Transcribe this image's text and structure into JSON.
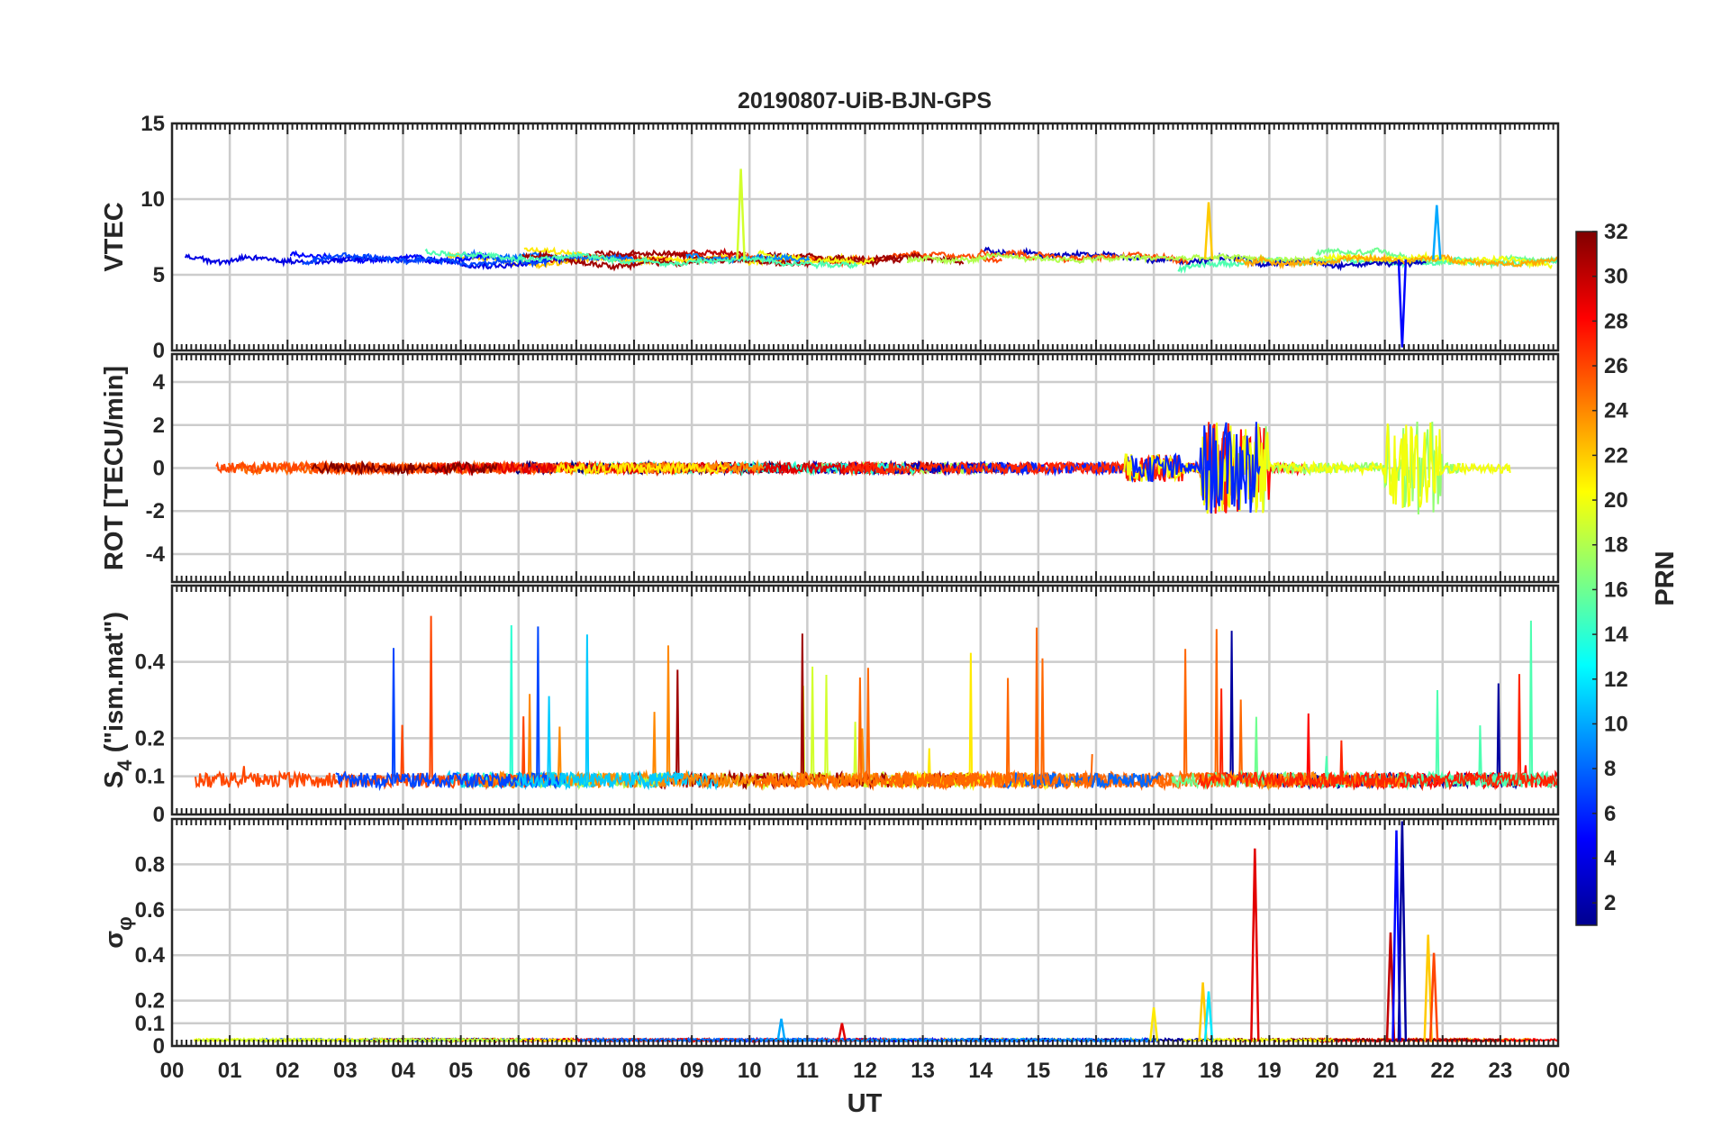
{
  "chart_data": {
    "type": "line",
    "title": "20190807-UiB-BJN-GPS",
    "xlabel": "UT",
    "x_ticks": [
      "00",
      "01",
      "02",
      "03",
      "04",
      "05",
      "06",
      "07",
      "08",
      "09",
      "10",
      "11",
      "12",
      "13",
      "14",
      "15",
      "16",
      "17",
      "18",
      "19",
      "20",
      "21",
      "22",
      "23",
      "00"
    ],
    "xlim_hours": [
      0,
      24
    ],
    "grid": true,
    "series_coloring": "color by PRN (jet colormap)",
    "colorbar": {
      "label": "PRN",
      "range": [
        1,
        32
      ],
      "ticks": [
        "32",
        "30",
        "28",
        "26",
        "24",
        "22",
        "20",
        "18",
        "16",
        "14",
        "12",
        "10",
        "8",
        "6",
        "4",
        "2"
      ],
      "colormap": "jet"
    },
    "panels": [
      {
        "id": "vtec",
        "ylabel": "VTEC",
        "ylim": [
          0,
          15
        ],
        "y_ticks": [
          0,
          5,
          10,
          15
        ],
        "y_tick_labels": [
          "0",
          "5",
          "10",
          "15"
        ],
        "baseline": 6.0,
        "noise": 0.9,
        "spikes": [
          {
            "t": 9.85,
            "value": 12.0,
            "prn": 19
          },
          {
            "t": 17.95,
            "value": 9.8,
            "prn": 22
          },
          {
            "t": 21.3,
            "value": 0.2,
            "prn": 5
          },
          {
            "t": 21.9,
            "value": 9.6,
            "prn": 10
          }
        ]
      },
      {
        "id": "rot",
        "ylabel": "ROT [TECU/min]",
        "ylim": [
          -5.3,
          5.3
        ],
        "y_ticks": [
          -4,
          -2,
          0,
          2,
          4
        ],
        "y_tick_labels": [
          "-4",
          "-2",
          "0",
          "2",
          "4"
        ],
        "baseline": 0,
        "noise": 0.25,
        "active_intervals": [
          {
            "start": 16.5,
            "end": 17.5,
            "amplitude": 1.2
          },
          {
            "start": 17.8,
            "end": 19.0,
            "amplitude": 3.9
          },
          {
            "start": 21.0,
            "end": 22.0,
            "amplitude": 4.0
          }
        ]
      },
      {
        "id": "s4",
        "ylabel_main": "S",
        "ylabel_sub": "4",
        "ylabel_tail": " (\"ism.mat\")",
        "ylim": [
          0,
          0.6
        ],
        "y_ticks": [
          0,
          0.1,
          0.2,
          0.4
        ],
        "y_tick_labels": [
          "0",
          "0.1",
          "0.2",
          "0.4"
        ],
        "baseline": 0.07,
        "noise": 0.05,
        "max_peak": 0.5
      },
      {
        "id": "sigma_phi",
        "ylabel_main": "σ",
        "ylabel_sub": "φ",
        "ylim": [
          0,
          1
        ],
        "y_ticks": [
          0,
          0.1,
          0.2,
          0.4,
          0.6,
          0.8
        ],
        "y_tick_labels": [
          "0",
          "0.1",
          "0.2",
          "0.4",
          "0.6",
          "0.8"
        ],
        "baseline": 0.02,
        "noise": 0.015,
        "spikes": [
          {
            "t": 17.0,
            "value": 0.17,
            "prn": 21
          },
          {
            "t": 17.85,
            "value": 0.28,
            "prn": 22
          },
          {
            "t": 17.95,
            "value": 0.24,
            "prn": 12
          },
          {
            "t": 18.75,
            "value": 0.87,
            "prn": 29
          },
          {
            "t": 21.1,
            "value": 0.5,
            "prn": 30
          },
          {
            "t": 21.2,
            "value": 0.95,
            "prn": 5
          },
          {
            "t": 21.3,
            "value": 0.99,
            "prn": 2
          },
          {
            "t": 21.75,
            "value": 0.49,
            "prn": 22
          },
          {
            "t": 21.85,
            "value": 0.41,
            "prn": 26
          },
          {
            "t": 11.6,
            "value": 0.1,
            "prn": 29
          },
          {
            "t": 10.55,
            "value": 0.12,
            "prn": 10
          }
        ]
      }
    ]
  }
}
